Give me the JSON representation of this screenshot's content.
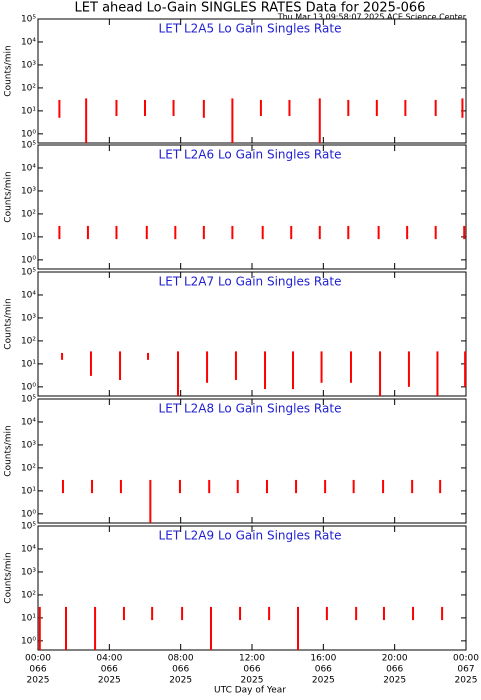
{
  "header": {
    "title": "LET ahead Lo-Gain SINGLES RATES Data for 2025-066",
    "subtitle": "Thu Mar 13 09:58:07 2025 ACE Science Center"
  },
  "chart_data": [
    {
      "type": "spike",
      "title": "LET L2A5 Lo Gain Singles Rate",
      "ylabel": "Counts/min",
      "color": "#ff0000",
      "log": true,
      "xlim": [
        0,
        24
      ],
      "ylim": [
        0.4,
        100000
      ],
      "yticks": [
        {
          "value": 1,
          "label": "10⁰"
        },
        {
          "value": 10,
          "label": "10¹"
        },
        {
          "value": 100,
          "label": "10²"
        },
        {
          "value": 1000,
          "label": "10³"
        },
        {
          "value": 10000,
          "label": "10⁴"
        },
        {
          "value": 100000,
          "label": "10⁵"
        }
      ],
      "x": [
        1.2,
        2.7,
        4.4,
        6.0,
        7.6,
        9.3,
        10.9,
        12.5,
        14.1,
        15.8,
        17.4,
        19.0,
        20.6,
        22.3,
        23.8
      ],
      "high": [
        30,
        35,
        30,
        30,
        30,
        30,
        35,
        30,
        30,
        35,
        30,
        30,
        30,
        30,
        35
      ],
      "low": [
        5,
        0.4,
        6,
        6,
        6,
        5,
        0.4,
        6,
        6,
        0.4,
        6,
        6,
        6,
        6,
        5
      ]
    },
    {
      "type": "spike",
      "title": "LET L2A6 Lo Gain Singles Rate",
      "ylabel": "Counts/min",
      "color": "#ff0000",
      "log": true,
      "xlim": [
        0,
        24
      ],
      "ylim": [
        0.4,
        100000
      ],
      "yticks": [
        {
          "value": 1,
          "label": "10⁰"
        },
        {
          "value": 10,
          "label": "10¹"
        },
        {
          "value": 100,
          "label": "10²"
        },
        {
          "value": 1000,
          "label": "10³"
        },
        {
          "value": 10000,
          "label": "10⁴"
        },
        {
          "value": 100000,
          "label": "10⁵"
        }
      ],
      "x": [
        1.2,
        2.8,
        4.4,
        6.1,
        7.7,
        9.3,
        10.9,
        12.6,
        14.2,
        15.8,
        17.4,
        19.1,
        20.7,
        22.3,
        23.9
      ],
      "high": [
        30,
        30,
        30,
        30,
        30,
        30,
        30,
        30,
        30,
        30,
        30,
        30,
        30,
        30,
        30
      ],
      "low": [
        8,
        8,
        8,
        8,
        8,
        8,
        8,
        8,
        8,
        8,
        8,
        8,
        8,
        8,
        8
      ]
    },
    {
      "type": "spike",
      "title": "LET L2A7 Lo Gain Singles Rate",
      "ylabel": "Counts/min",
      "color": "#ff0000",
      "log": true,
      "xlim": [
        0,
        24
      ],
      "ylim": [
        0.4,
        100000
      ],
      "yticks": [
        {
          "value": 1,
          "label": "10⁰"
        },
        {
          "value": 10,
          "label": "10¹"
        },
        {
          "value": 100,
          "label": "10²"
        },
        {
          "value": 1000,
          "label": "10³"
        },
        {
          "value": 10000,
          "label": "10⁴"
        },
        {
          "value": 100000,
          "label": "10⁵"
        }
      ],
      "x": [
        1.35,
        2.97,
        4.6,
        6.17,
        7.85,
        9.48,
        11.1,
        12.73,
        14.3,
        15.9,
        17.55,
        19.18,
        20.8,
        22.4,
        23.95
      ],
      "high": [
        30,
        35,
        35,
        30,
        35,
        35,
        35,
        35,
        35,
        35,
        35,
        35,
        35,
        35,
        35
      ],
      "low": [
        15,
        3,
        2,
        15,
        0.4,
        1.5,
        2,
        0.8,
        0.8,
        1.5,
        1.5,
        0.4,
        1,
        0.4,
        1
      ]
    },
    {
      "type": "spike",
      "title": "LET L2A8 Lo Gain Singles Rate",
      "ylabel": "Counts/min",
      "color": "#ff0000",
      "log": true,
      "xlim": [
        0,
        24
      ],
      "ylim": [
        0.4,
        100000
      ],
      "yticks": [
        {
          "value": 1,
          "label": "10⁰"
        },
        {
          "value": 10,
          "label": "10¹"
        },
        {
          "value": 100,
          "label": "10²"
        },
        {
          "value": 1000,
          "label": "10³"
        },
        {
          "value": 10000,
          "label": "10⁴"
        },
        {
          "value": 100000,
          "label": "10⁵"
        }
      ],
      "x": [
        1.4,
        3.03,
        4.65,
        6.3,
        7.96,
        9.6,
        11.2,
        12.84,
        14.47,
        16.1,
        17.7,
        19.35,
        20.98,
        22.55
      ],
      "high": [
        30,
        30,
        30,
        30,
        30,
        30,
        30,
        30,
        30,
        30,
        30,
        30,
        30,
        30
      ],
      "low": [
        8,
        8,
        8,
        0.4,
        8,
        8,
        8,
        8,
        8,
        8,
        8,
        8,
        8,
        8
      ]
    },
    {
      "type": "spike",
      "title": "LET L2A9 Lo Gain Singles Rate",
      "ylabel": "Counts/min",
      "color": "#ff0000",
      "log": true,
      "xlim": [
        0,
        24
      ],
      "ylim": [
        0.4,
        100000
      ],
      "yticks": [
        {
          "value": 1,
          "label": "10⁰"
        },
        {
          "value": 10,
          "label": "10¹"
        },
        {
          "value": 100,
          "label": "10²"
        },
        {
          "value": 1000,
          "label": "10³"
        },
        {
          "value": 10000,
          "label": "10⁴"
        },
        {
          "value": 100000,
          "label": "10⁵"
        }
      ],
      "x": [
        0.1,
        1.57,
        3.2,
        4.82,
        6.4,
        8.08,
        9.7,
        11.33,
        12.96,
        14.58,
        16.2,
        17.84,
        19.4,
        21.03,
        22.66
      ],
      "high": [
        30,
        30,
        30,
        30,
        30,
        30,
        30,
        30,
        30,
        30,
        30,
        30,
        30,
        30,
        30
      ],
      "low": [
        0.4,
        0.4,
        0.4,
        8,
        8,
        8,
        0.4,
        8,
        8,
        0.4,
        8,
        8,
        8,
        8,
        8
      ],
      "xticks": [
        {
          "value": 0,
          "label": "00:00"
        },
        {
          "value": 4,
          "label": "04:00"
        },
        {
          "value": 8,
          "label": "08:00"
        },
        {
          "value": 12,
          "label": "12:00"
        },
        {
          "value": 16,
          "label": "16:00"
        },
        {
          "value": 20,
          "label": "20:00"
        },
        {
          "value": 24,
          "label": "00:00"
        }
      ],
      "xtick_days": [
        "066",
        "066",
        "066",
        "066",
        "066",
        "066",
        "067"
      ],
      "xtick_years": [
        "2025",
        "2025",
        "2025",
        "2025",
        "2025",
        "2025",
        "2025"
      ],
      "xlabel": "UTC Day of Year"
    }
  ]
}
